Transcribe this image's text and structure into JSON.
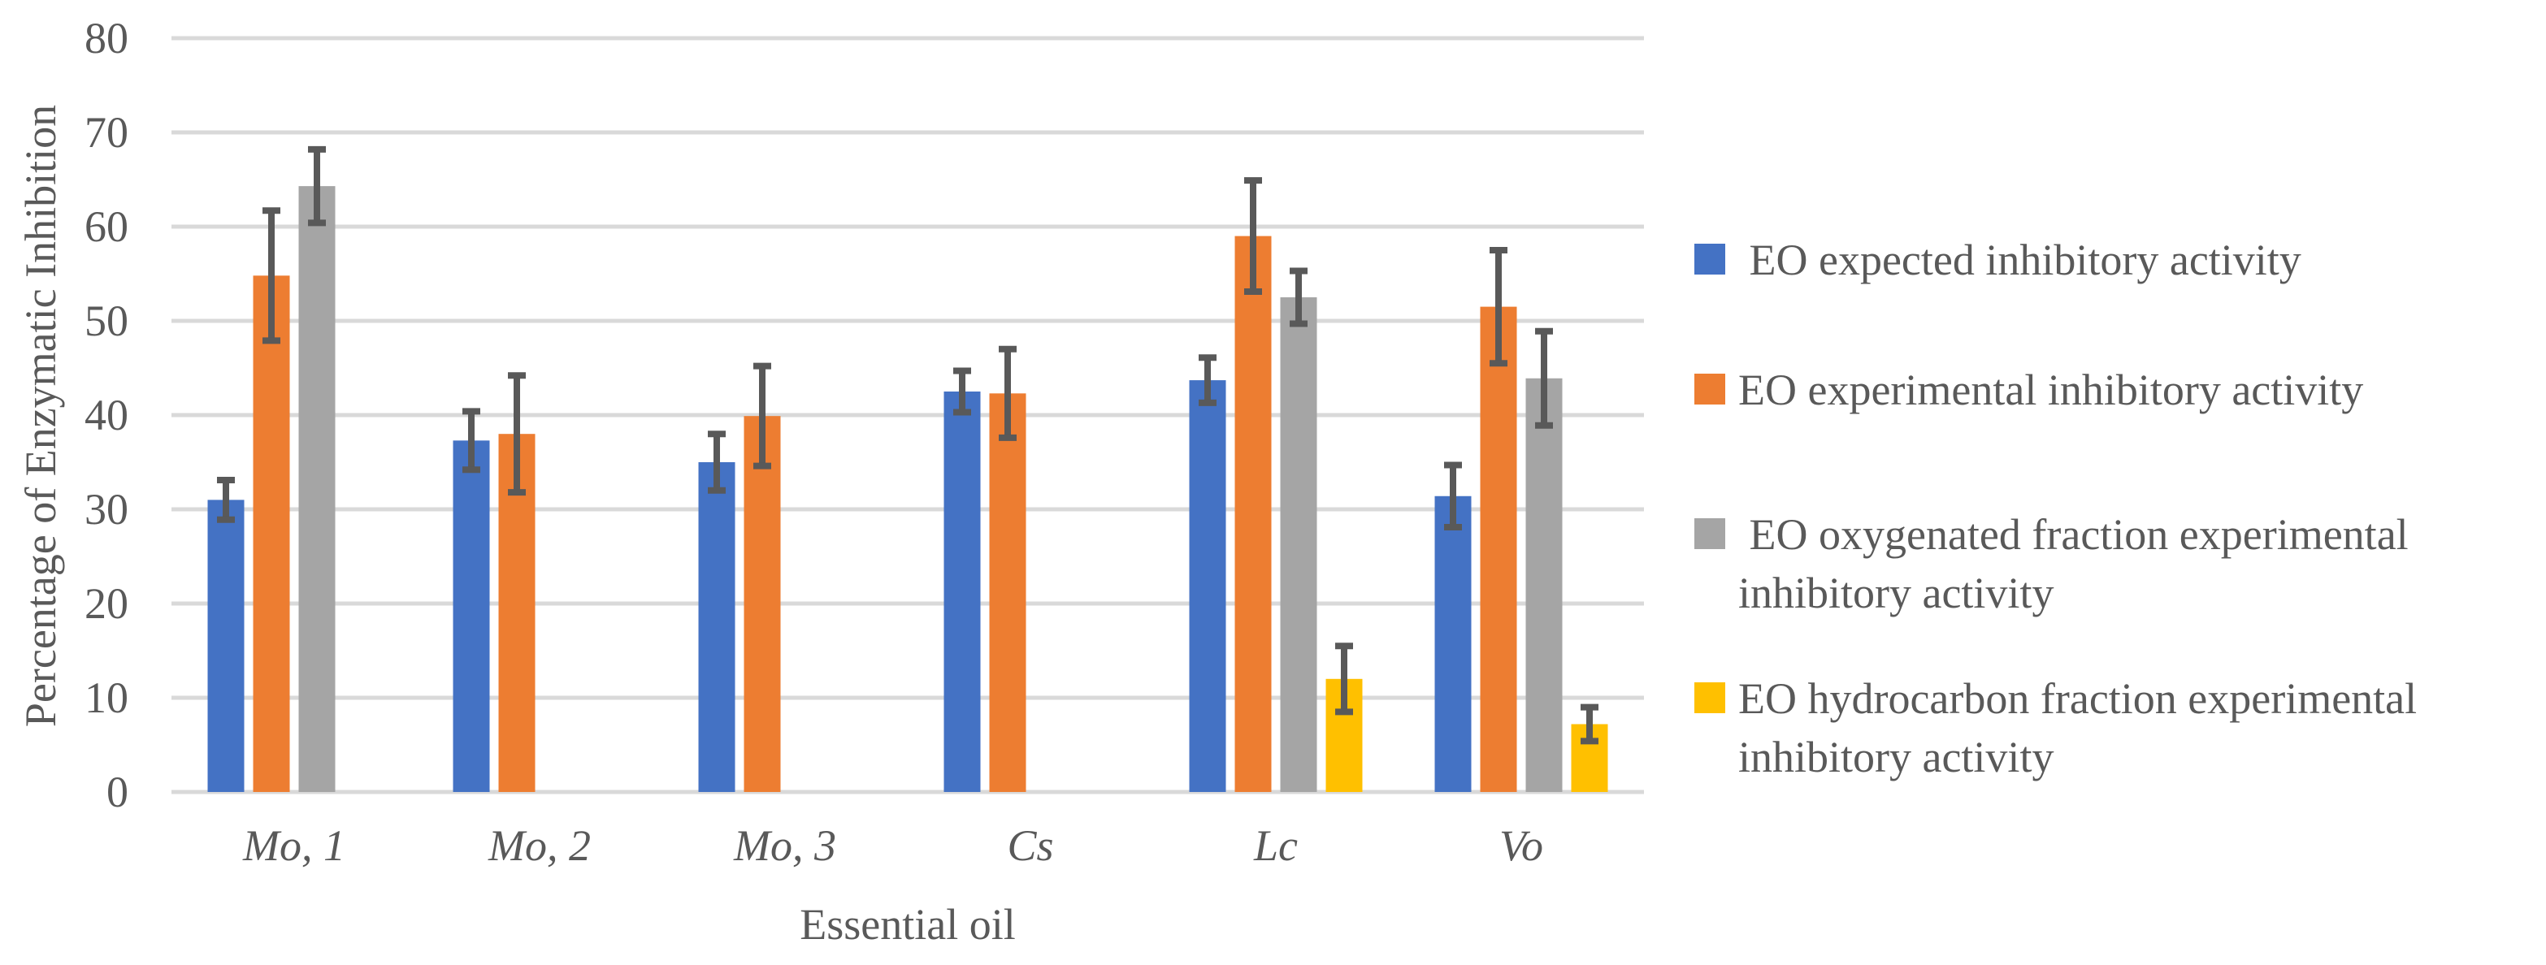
{
  "figure": {
    "background_color": "#FFFFFF",
    "text_color": "#595959",
    "gridline_color": "#D9D9D9",
    "error_bar_color": "#595959"
  },
  "chart_data": {
    "type": "bar",
    "title": "",
    "xlabel": "Essential oil",
    "ylabel": "Percentage of Enzymatic Inhibition",
    "categories": [
      "Mo, 1",
      "Mo, 2",
      "Mo, 3",
      "Cs",
      "Lc",
      "Vo"
    ],
    "ylim": [
      0,
      80
    ],
    "yticks": [
      0,
      10,
      20,
      30,
      40,
      50,
      60,
      70,
      80
    ],
    "grid": true,
    "error_bars": true,
    "legend_position": "right",
    "series": [
      {
        "name": " EO expected inhibitory activity",
        "color": "#4472C4",
        "values": [
          31.0,
          37.3,
          35.0,
          42.5,
          43.7,
          31.4
        ],
        "errors": [
          2.1,
          3.1,
          3.0,
          2.2,
          2.4,
          3.3
        ]
      },
      {
        "name": "EO experimental inhibitory activity",
        "color": "#ED7D31",
        "values": [
          54.8,
          38.0,
          39.9,
          42.3,
          59.0,
          51.5
        ],
        "errors": [
          6.9,
          6.2,
          5.3,
          4.7,
          5.9,
          6.0
        ]
      },
      {
        "name": " EO oxygenated fraction experimental inhibitory activity",
        "color": "#A5A5A5",
        "values": [
          64.3,
          null,
          null,
          null,
          52.5,
          43.9
        ],
        "errors": [
          3.9,
          null,
          null,
          null,
          2.8,
          5.0
        ]
      },
      {
        "name": "EO hydrocarbon fraction experimental inhibitory activity",
        "color": "#FFC000",
        "values": [
          null,
          null,
          null,
          null,
          12.0,
          7.2
        ],
        "errors": [
          null,
          null,
          null,
          null,
          3.5,
          1.8
        ]
      }
    ]
  }
}
